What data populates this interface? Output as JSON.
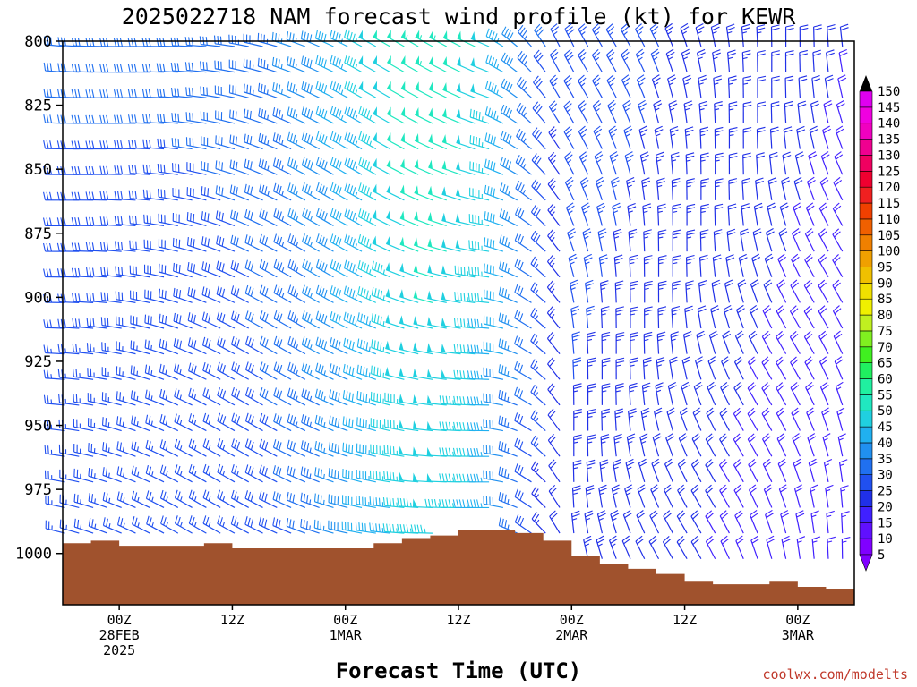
{
  "chart_data": {
    "type": "wind-barb time-height profile",
    "title": "2025022718 NAM forecast wind profile (kt) for KEWR",
    "xlabel": "Forecast Time (UTC)",
    "credit": "coolwx.com/modelts",
    "y_axis": {
      "label": "",
      "min": 800,
      "max": 1020,
      "inverted": true,
      "ticks": [
        800,
        825,
        850,
        875,
        900,
        925,
        950,
        975,
        1000
      ]
    },
    "x_axis": {
      "start": "2025-02-27 18Z",
      "end": "2025-03-03 06Z",
      "hour_step": 1,
      "ticks": [
        {
          "label": "00Z",
          "date": "28FEB",
          "year": "2025",
          "hour": 6
        },
        {
          "label": "12Z",
          "date": "",
          "year": "",
          "hour": 18
        },
        {
          "label": "00Z",
          "date": "1MAR",
          "year": "",
          "hour": 30
        },
        {
          "label": "12Z",
          "date": "",
          "year": "",
          "hour": 42
        },
        {
          "label": "00Z",
          "date": "2MAR",
          "year": "",
          "hour": 54
        },
        {
          "label": "12Z",
          "date": "",
          "year": "",
          "hour": 66
        },
        {
          "label": "00Z",
          "date": "3MAR",
          "year": "",
          "hour": 78
        }
      ]
    },
    "pressure_levels": [
      800,
      810,
      820,
      830,
      840,
      850,
      860,
      870,
      880,
      890,
      900,
      910,
      920,
      930,
      940,
      950,
      960,
      970,
      980,
      990,
      1000
    ],
    "surface_pressure": {
      "hours": [
        0,
        3,
        6,
        9,
        12,
        15,
        18,
        21,
        24,
        27,
        30,
        33,
        36,
        39,
        42,
        45,
        48,
        51,
        54,
        57,
        60,
        63,
        66,
        69,
        72,
        75,
        78,
        81,
        84
      ],
      "values": [
        996,
        995,
        997,
        997,
        997,
        996,
        998,
        998,
        998,
        998,
        998,
        996,
        994,
        993,
        991,
        991,
        992,
        995,
        1001,
        1004,
        1006,
        1008,
        1011,
        1012,
        1012,
        1011,
        1013,
        1014,
        1014
      ]
    },
    "wind_field": {
      "description": "Barb wind direction/speed by time and pressure level",
      "regimes": [
        {
          "hours": "18Z 27FEB - 00Z 1MAR",
          "direction": "W to NW",
          "speed_kt": [
            25,
            45
          ]
        },
        {
          "hours": "00Z 1MAR - 20Z 1MAR",
          "direction": "W to NW",
          "speed_kt": [
            35,
            55
          ]
        },
        {
          "hours": "20Z 1MAR - 06Z 3MAR",
          "direction": "N to NNW",
          "speed_kt": [
            10,
            30
          ]
        }
      ]
    },
    "colorbar": {
      "units": "kt",
      "levels": [
        5,
        10,
        15,
        20,
        25,
        30,
        35,
        40,
        45,
        50,
        55,
        60,
        65,
        70,
        75,
        80,
        85,
        90,
        95,
        100,
        105,
        110,
        115,
        120,
        125,
        130,
        135,
        140,
        145,
        150
      ],
      "colors": [
        "#8000ff",
        "#6010ff",
        "#4020ff",
        "#2030e8",
        "#2050f0",
        "#2070f0",
        "#2090f0",
        "#20b0f0",
        "#20d0e0",
        "#20e8c0",
        "#20f0a0",
        "#20f060",
        "#40f020",
        "#80f020",
        "#c0f020",
        "#f0f000",
        "#f0e000",
        "#f0c000",
        "#f0a000",
        "#f08000",
        "#f06000",
        "#f04000",
        "#f02020",
        "#f00030",
        "#f00060",
        "#f00090",
        "#f000c0",
        "#f000e0",
        "#e000f0",
        "#000000"
      ]
    },
    "ground_color": "#a0522d"
  }
}
